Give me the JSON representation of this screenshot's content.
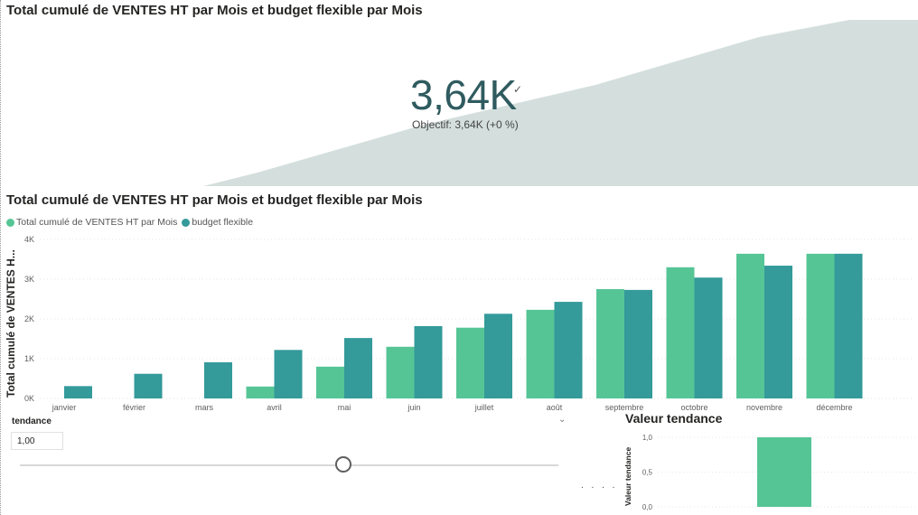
{
  "kpi": {
    "title": "Total cumulé de VENTES HT par Mois et budget flexible par Mois",
    "value": "3,64K",
    "status_icon": "check-icon",
    "goal_text": "Objectif: 3,64K (+0 %)",
    "trend_fill_color": "#d4dfdd",
    "value_color": "#2f5b5f"
  },
  "bar_chart": {
    "title": "Total cumulé de VENTES HT par Mois et budget flexible par Mois",
    "y_axis_title": "Total cumulé de VENTES H...",
    "legend": [
      {
        "label": "Total cumulé de VENTES HT par Mois",
        "color": "#56c596"
      },
      {
        "label": "budget flexible",
        "color": "#349a9a"
      }
    ],
    "dropdown_icon": "chevron-down-icon"
  },
  "slicer": {
    "title": "tendance",
    "value": "1,00",
    "slider_fraction": 0.6
  },
  "small_chart": {
    "title": "Valeur tendance",
    "y_axis_title": "Valeur tendance",
    "ticks": [
      "1,0",
      "0,5",
      "0,0"
    ],
    "value": 1.0,
    "color": "#56c596",
    "overflow_marker": ". . . ."
  },
  "chart_data": [
    {
      "type": "bar",
      "title": "Total cumulé de VENTES HT par Mois et budget flexible par Mois",
      "ylabel": "Total cumulé de VENTES H...",
      "xlabel": "",
      "categories": [
        "janvier",
        "février",
        "mars",
        "avril",
        "mai",
        "juin",
        "juillet",
        "août",
        "septembre",
        "octobre",
        "novembre",
        "décembre"
      ],
      "series": [
        {
          "name": "Total cumulé de VENTES HT par Mois",
          "color": "#56c596",
          "values": [
            0,
            0,
            0,
            300,
            800,
            1300,
            1780,
            2230,
            2750,
            3300,
            3640,
            3640
          ]
        },
        {
          "name": "budget flexible",
          "color": "#349a9a",
          "values": [
            310,
            620,
            910,
            1220,
            1520,
            1820,
            2130,
            2430,
            2730,
            3040,
            3340,
            3640
          ]
        }
      ],
      "ylim": [
        0,
        4000
      ],
      "yticks": [
        "0K",
        "1K",
        "2K",
        "3K",
        "4K"
      ],
      "grid": true,
      "legend_position": "top-left"
    },
    {
      "type": "bar",
      "title": "Valeur tendance",
      "ylabel": "Valeur tendance",
      "categories": [
        ""
      ],
      "values": [
        1.0
      ],
      "ylim": [
        0,
        1.0
      ],
      "yticks": [
        "0,0",
        "0,5",
        "1,0"
      ]
    }
  ]
}
